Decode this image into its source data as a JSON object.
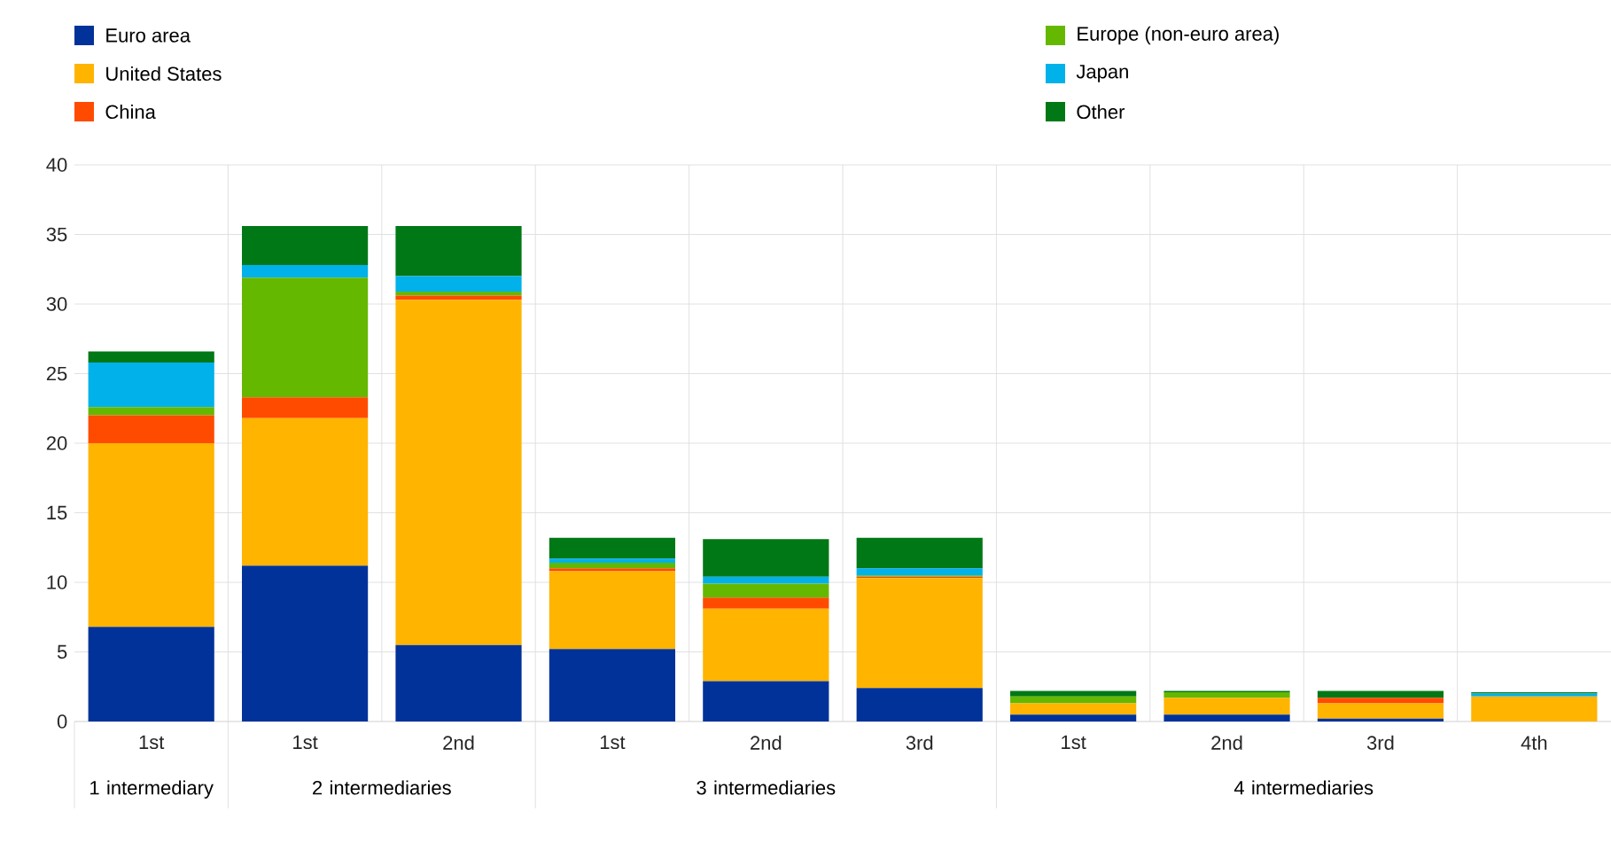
{
  "chart_data": {
    "type": "bar",
    "stacked": true,
    "categories": [
      "1st",
      "1st",
      "2nd",
      "1st",
      "2nd",
      "3rd",
      "1st",
      "2nd",
      "3rd",
      "4th"
    ],
    "series": [
      {
        "name": "Euro area",
        "color": "#003299",
        "values": [
          6.8,
          11.2,
          5.5,
          5.2,
          2.9,
          2.4,
          0.5,
          0.5,
          0.2,
          0
        ]
      },
      {
        "name": "United States",
        "color": "#ffb400",
        "values": [
          13.2,
          10.6,
          24.8,
          5.6,
          5.2,
          7.9,
          0.8,
          1.2,
          1.1,
          1.8
        ]
      },
      {
        "name": "China",
        "color": "#ff4b00",
        "values": [
          2.0,
          1.5,
          0.3,
          0.2,
          0.8,
          0.1,
          0,
          0,
          0.4,
          0
        ]
      },
      {
        "name": "Europe (non-euro area)",
        "color": "#65b800",
        "values": [
          0.6,
          8.6,
          0.3,
          0.4,
          1.0,
          0.1,
          0.5,
          0.4,
          0,
          0
        ]
      },
      {
        "name": "Japan",
        "color": "#00b1ea",
        "values": [
          3.2,
          0.9,
          1.1,
          0.3,
          0.5,
          0.5,
          0,
          0,
          0,
          0.2
        ]
      },
      {
        "name": "Other",
        "color": "#007816",
        "values": [
          0.8,
          2.8,
          3.6,
          1.5,
          2.7,
          2.2,
          0.4,
          0.1,
          0.5,
          0.1
        ]
      }
    ],
    "ylim": [
      0,
      40
    ],
    "yticks": [
      0,
      5,
      10,
      15,
      20,
      25,
      30,
      35,
      40
    ],
    "grid": true,
    "legend": "top",
    "annotations": [
      "1 intermediary",
      "2 intermediaries",
      "3 intermediaries",
      "4 intermediaries"
    ]
  }
}
